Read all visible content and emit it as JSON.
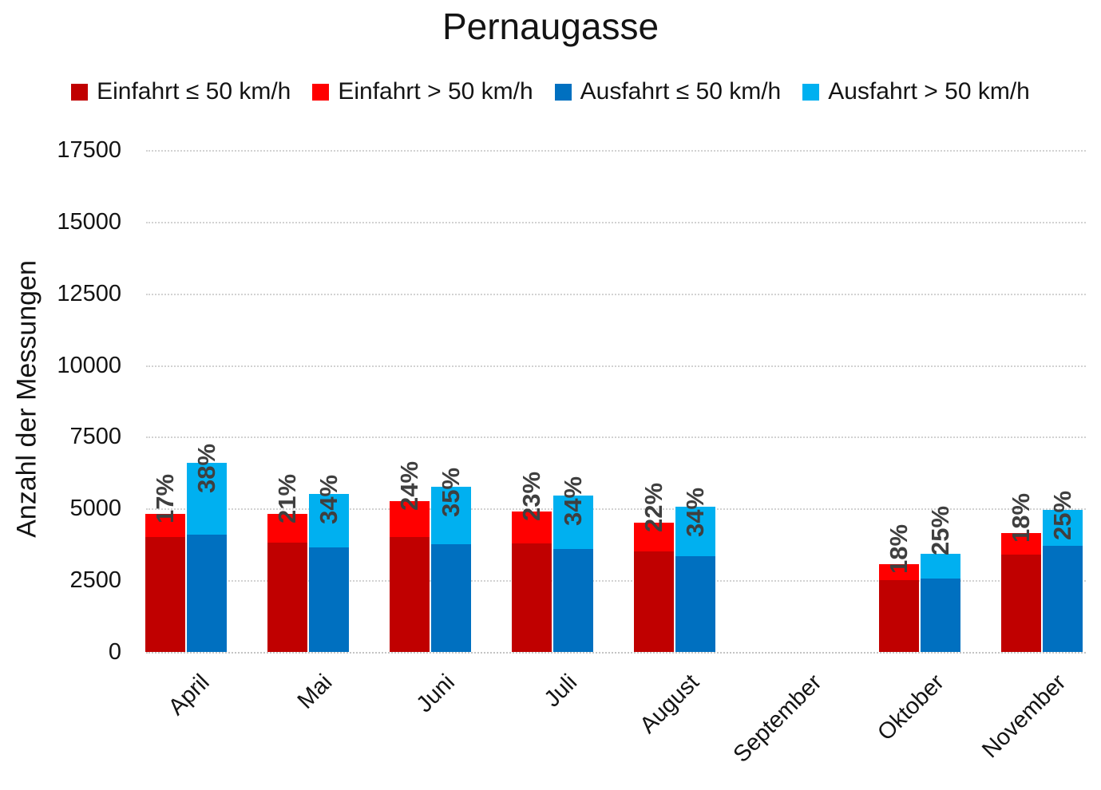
{
  "chart_data": {
    "type": "bar",
    "stacked": true,
    "title": "Pernaugasse",
    "ylabel": "Anzahl der Messungen",
    "ylim": [
      0,
      17500
    ],
    "yticks": [
      0,
      2500,
      5000,
      7500,
      10000,
      12500,
      15000,
      17500
    ],
    "grid": true,
    "legend_position": "top",
    "categories": [
      "April",
      "Mai",
      "Juni",
      "Juli",
      "August",
      "September",
      "Oktober",
      "November"
    ],
    "series": [
      {
        "name": "Einfahrt ≤ 50 km/h",
        "color": "#C00000",
        "stack": "Einfahrt",
        "values": [
          4000,
          3800,
          4000,
          3780,
          3500,
          0,
          2500,
          3400
        ]
      },
      {
        "name": "Einfahrt > 50 km/h",
        "color": "#FF0000",
        "stack": "Einfahrt",
        "values": [
          800,
          1000,
          1250,
          1120,
          1000,
          0,
          550,
          750
        ]
      },
      {
        "name": "Ausfahrt ≤ 50 km/h",
        "color": "#0070C0",
        "stack": "Ausfahrt",
        "values": [
          4100,
          3650,
          3750,
          3600,
          3330,
          0,
          2570,
          3700
        ]
      },
      {
        "name": "Ausfahrt > 50 km/h",
        "color": "#00B0F0",
        "stack": "Ausfahrt",
        "values": [
          2500,
          1850,
          2000,
          1850,
          1720,
          0,
          850,
          1250
        ]
      }
    ],
    "stack_totals": {
      "Einfahrt": [
        4800,
        4800,
        5250,
        4900,
        4500,
        0,
        3050,
        4150
      ],
      "Ausfahrt": [
        6600,
        5500,
        5750,
        5450,
        5050,
        0,
        3420,
        4950
      ]
    },
    "bar_labels": {
      "einfahrt_pct": [
        "17%",
        "21%",
        "24%",
        "23%",
        "22%",
        "",
        "18%",
        "18%"
      ],
      "ausfahrt_pct": [
        "38%",
        "34%",
        "35%",
        "34%",
        "34%",
        "",
        "25%",
        "25%"
      ],
      "label_color": "#3f3f3f",
      "meaning": "Anteil > 50 km/h je Balken"
    }
  }
}
